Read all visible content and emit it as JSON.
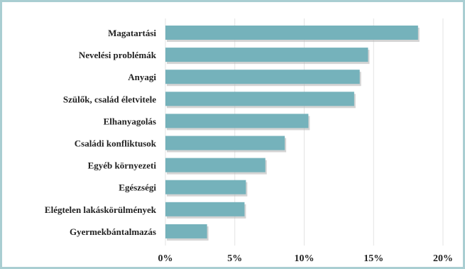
{
  "chart_data": {
    "type": "bar",
    "orientation": "horizontal",
    "categories": [
      "Magatartási",
      "Nevelési problémák",
      "Anyagi",
      "Szülők, család életvitele",
      "Elhanyagolás",
      "Családi konfliktusok",
      "Egyéb környezeti",
      "Egészségi",
      "Elégtelen lakáskörülmények",
      "Gyermekbántalmazás"
    ],
    "values": [
      18.2,
      14.6,
      14.0,
      13.6,
      10.3,
      8.6,
      7.2,
      5.8,
      5.7,
      3.0
    ],
    "xlim": [
      0,
      20
    ],
    "xticks": [
      "0%",
      "5%",
      "10%",
      "15%",
      "20%"
    ],
    "xtick_values": [
      0,
      5,
      10,
      15,
      20
    ],
    "title": "",
    "xlabel": "",
    "ylabel": "",
    "grid": true,
    "colors": {
      "bar": "#75b2bb",
      "bar_shadow": "#b8b8b8",
      "grid": "#e3e3e3",
      "frame": "#a9ced2"
    }
  }
}
